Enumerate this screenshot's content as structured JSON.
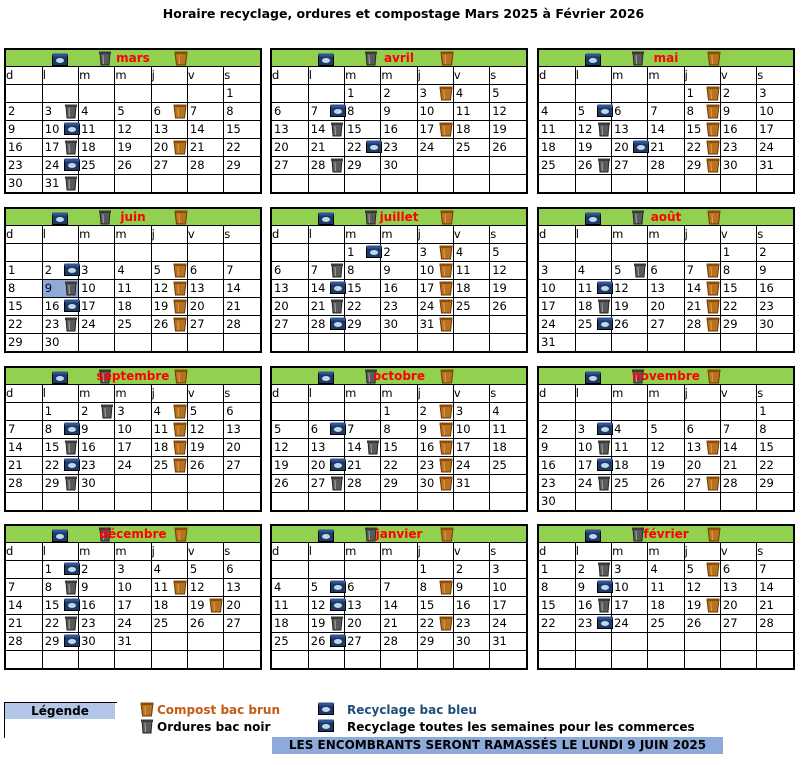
{
  "title": "Horaire recyclage, ordures et compostage Mars 2025 à Février 2026",
  "weekday_labels": [
    "d",
    "l",
    "m",
    "m",
    "j",
    "v",
    "s"
  ],
  "months": [
    {
      "name": "mars",
      "weeks": [
        [
          "",
          "",
          "",
          "",
          "",
          "",
          "1"
        ],
        [
          "2",
          "3",
          "4",
          "5",
          "6",
          "7",
          "8"
        ],
        [
          "9",
          "10",
          "11",
          "12",
          "13",
          "14",
          "15"
        ],
        [
          "16",
          "17",
          "18",
          "19",
          "20",
          "21",
          "22"
        ],
        [
          "23",
          "24",
          "25",
          "26",
          "27",
          "28",
          "29"
        ],
        [
          "30",
          "31",
          "",
          "",
          "",
          "",
          ""
        ]
      ],
      "icons": {
        "3": [
          "noir"
        ],
        "6": [
          "brun"
        ],
        "10": [
          "bleu"
        ],
        "17": [
          "noir"
        ],
        "20": [
          "brun"
        ],
        "24": [
          "bleu"
        ],
        "31": [
          "noir"
        ]
      }
    },
    {
      "name": "avril",
      "weeks": [
        [
          "",
          "",
          "1",
          "2",
          "3",
          "4",
          "5"
        ],
        [
          "6",
          "7",
          "8",
          "9",
          "10",
          "11",
          "12"
        ],
        [
          "13",
          "14",
          "15",
          "16",
          "17",
          "18",
          "19"
        ],
        [
          "20",
          "21",
          "22",
          "23",
          "24",
          "25",
          "26"
        ],
        [
          "27",
          "28",
          "29",
          "30",
          "",
          "",
          ""
        ],
        [
          "",
          "",
          "",
          "",
          "",
          "",
          ""
        ]
      ],
      "icons": {
        "3": [
          "brun"
        ],
        "7": [
          "bleu"
        ],
        "14": [
          "noir"
        ],
        "17": [
          "brun"
        ],
        "22": [
          "bleu"
        ],
        "28": [
          "noir"
        ]
      }
    },
    {
      "name": "mai",
      "weeks": [
        [
          "",
          "",
          "",
          "",
          "1",
          "2",
          "3"
        ],
        [
          "4",
          "5",
          "6",
          "7",
          "8",
          "9",
          "10"
        ],
        [
          "11",
          "12",
          "13",
          "14",
          "15",
          "16",
          "17"
        ],
        [
          "18",
          "19",
          "20",
          "21",
          "22",
          "23",
          "24"
        ],
        [
          "25",
          "26",
          "27",
          "28",
          "29",
          "30",
          "31"
        ],
        [
          "",
          "",
          "",
          "",
          "",
          "",
          ""
        ]
      ],
      "icons": {
        "1": [
          "brun"
        ],
        "5": [
          "bleu"
        ],
        "8": [
          "brun"
        ],
        "12": [
          "noir"
        ],
        "15": [
          "brun"
        ],
        "20": [
          "bleu"
        ],
        "22": [
          "brun"
        ],
        "26": [
          "noir"
        ],
        "29": [
          "brun"
        ]
      }
    },
    {
      "name": "juin",
      "weeks": [
        [
          "",
          "",
          "",
          "",
          "",
          "",
          ""
        ],
        [
          "1",
          "2",
          "3",
          "4",
          "5",
          "6",
          "7"
        ],
        [
          "8",
          "9",
          "10",
          "11",
          "12",
          "13",
          "14"
        ],
        [
          "15",
          "16",
          "17",
          "18",
          "19",
          "20",
          "21"
        ],
        [
          "22",
          "23",
          "24",
          "25",
          "26",
          "27",
          "28"
        ],
        [
          "29",
          "30",
          "",
          "",
          "",
          "",
          ""
        ]
      ],
      "icons": {
        "2": [
          "bleu"
        ],
        "5": [
          "brun"
        ],
        "9": [
          "noir"
        ],
        "12": [
          "brun"
        ],
        "16": [
          "bleu"
        ],
        "19": [
          "brun"
        ],
        "23": [
          "noir"
        ],
        "26": [
          "brun"
        ]
      },
      "highlight": [
        "9"
      ]
    },
    {
      "name": "juillet",
      "weeks": [
        [
          "",
          "",
          "1",
          "2",
          "3",
          "4",
          "5"
        ],
        [
          "6",
          "7",
          "8",
          "9",
          "10",
          "11",
          "12"
        ],
        [
          "13",
          "14",
          "15",
          "16",
          "17",
          "18",
          "19"
        ],
        [
          "20",
          "21",
          "22",
          "23",
          "24",
          "25",
          "26"
        ],
        [
          "27",
          "28",
          "29",
          "30",
          "31",
          "",
          ""
        ],
        [
          "",
          "",
          "",
          "",
          "",
          "",
          ""
        ]
      ],
      "icons": {
        "1": [
          "bleu"
        ],
        "3": [
          "brun"
        ],
        "7": [
          "noir"
        ],
        "10": [
          "brun"
        ],
        "14": [
          "bleu"
        ],
        "17": [
          "brun"
        ],
        "21": [
          "noir"
        ],
        "24": [
          "brun"
        ],
        "28": [
          "bleu"
        ],
        "31": [
          "brun"
        ]
      }
    },
    {
      "name": "août",
      "weeks": [
        [
          "",
          "",
          "",
          "",
          "",
          "1",
          "2"
        ],
        [
          "3",
          "4",
          "5",
          "6",
          "7",
          "8",
          "9"
        ],
        [
          "10",
          "11",
          "12",
          "13",
          "14",
          "15",
          "16"
        ],
        [
          "17",
          "18",
          "19",
          "20",
          "21",
          "22",
          "23"
        ],
        [
          "24",
          "25",
          "26",
          "27",
          "28",
          "29",
          "30"
        ],
        [
          "31",
          "",
          "",
          "",
          "",
          "",
          ""
        ]
      ],
      "icons": {
        "5": [
          "noir"
        ],
        "7": [
          "brun"
        ],
        "11": [
          "bleu"
        ],
        "14": [
          "brun"
        ],
        "18": [
          "noir"
        ],
        "21": [
          "brun"
        ],
        "25": [
          "bleu"
        ],
        "28": [
          "brun"
        ]
      }
    },
    {
      "name": "septembre",
      "weeks": [
        [
          "",
          "1",
          "2",
          "3",
          "4",
          "5",
          "6"
        ],
        [
          "7",
          "8",
          "9",
          "10",
          "11",
          "12",
          "13"
        ],
        [
          "14",
          "15",
          "16",
          "17",
          "18",
          "19",
          "20"
        ],
        [
          "21",
          "22",
          "23",
          "24",
          "25",
          "26",
          "27"
        ],
        [
          "28",
          "29",
          "30",
          "",
          "",
          "",
          ""
        ],
        [
          "",
          "",
          "",
          "",
          "",
          "",
          ""
        ]
      ],
      "icons": {
        "2": [
          "noir"
        ],
        "4": [
          "brun"
        ],
        "8": [
          "bleu"
        ],
        "11": [
          "brun"
        ],
        "15": [
          "noir"
        ],
        "18": [
          "brun"
        ],
        "22": [
          "bleu"
        ],
        "25": [
          "brun"
        ],
        "29": [
          "noir"
        ]
      }
    },
    {
      "name": "octobre",
      "weeks": [
        [
          "",
          "",
          "",
          "1",
          "2",
          "3",
          "4"
        ],
        [
          "5",
          "6",
          "7",
          "8",
          "9",
          "10",
          "11"
        ],
        [
          "12",
          "13",
          "14",
          "15",
          "16",
          "17",
          "18"
        ],
        [
          "19",
          "20",
          "21",
          "22",
          "23",
          "24",
          "25"
        ],
        [
          "26",
          "27",
          "28",
          "29",
          "30",
          "31",
          ""
        ],
        [
          "",
          "",
          "",
          "",
          "",
          "",
          ""
        ]
      ],
      "icons": {
        "2": [
          "brun"
        ],
        "6": [
          "bleu"
        ],
        "9": [
          "brun"
        ],
        "14": [
          "noir"
        ],
        "16": [
          "brun"
        ],
        "20": [
          "bleu"
        ],
        "23": [
          "brun"
        ],
        "27": [
          "noir"
        ],
        "30": [
          "brun"
        ]
      }
    },
    {
      "name": "novembre",
      "weeks": [
        [
          "",
          "",
          "",
          "",
          "",
          "",
          "1"
        ],
        [
          "2",
          "3",
          "4",
          "5",
          "6",
          "7",
          "8"
        ],
        [
          "9",
          "10",
          "11",
          "12",
          "13",
          "14",
          "15"
        ],
        [
          "16",
          "17",
          "18",
          "19",
          "20",
          "21",
          "22"
        ],
        [
          "23",
          "24",
          "25",
          "26",
          "27",
          "28",
          "29"
        ],
        [
          "30",
          "",
          "",
          "",
          "",
          "",
          ""
        ]
      ],
      "icons": {
        "3": [
          "bleu"
        ],
        "10": [
          "noir"
        ],
        "13": [
          "brun"
        ],
        "17": [
          "bleu"
        ],
        "24": [
          "noir"
        ],
        "27": [
          "brun"
        ]
      }
    },
    {
      "name": "décembre",
      "weeks": [
        [
          "",
          "1",
          "2",
          "3",
          "4",
          "5",
          "6"
        ],
        [
          "7",
          "8",
          "9",
          "10",
          "11",
          "12",
          "13"
        ],
        [
          "14",
          "15",
          "16",
          "17",
          "18",
          "19",
          "20"
        ],
        [
          "21",
          "22",
          "23",
          "24",
          "25",
          "26",
          "27"
        ],
        [
          "28",
          "29",
          "30",
          "31",
          "",
          "",
          ""
        ],
        [
          "",
          "",
          "",
          "",
          "",
          "",
          ""
        ]
      ],
      "icons": {
        "1": [
          "bleu"
        ],
        "8": [
          "noir"
        ],
        "11": [
          "brun"
        ],
        "15": [
          "bleu"
        ],
        "19": [
          "brun"
        ],
        "22": [
          "noir"
        ],
        "29": [
          "bleu"
        ]
      }
    },
    {
      "name": "janvier",
      "weeks": [
        [
          "",
          "",
          "",
          "",
          "1",
          "2",
          "3"
        ],
        [
          "4",
          "5",
          "6",
          "7",
          "8",
          "9",
          "10"
        ],
        [
          "11",
          "12",
          "13",
          "14",
          "15",
          "16",
          "17"
        ],
        [
          "18",
          "19",
          "20",
          "21",
          "22",
          "23",
          "24"
        ],
        [
          "25",
          "26",
          "27",
          "28",
          "29",
          "30",
          "31"
        ],
        [
          "",
          "",
          "",
          "",
          "",
          "",
          ""
        ]
      ],
      "icons": {
        "5": [
          "bleu"
        ],
        "8": [
          "brun"
        ],
        "12": [
          "bleu"
        ],
        "19": [
          "noir"
        ],
        "22": [
          "brun"
        ],
        "26": [
          "bleu"
        ]
      }
    },
    {
      "name": "février",
      "weeks": [
        [
          "1",
          "2",
          "3",
          "4",
          "5",
          "6",
          "7"
        ],
        [
          "8",
          "9",
          "10",
          "11",
          "12",
          "13",
          "14"
        ],
        [
          "15",
          "16",
          "17",
          "18",
          "19",
          "20",
          "21"
        ],
        [
          "22",
          "23",
          "24",
          "25",
          "26",
          "27",
          "28"
        ],
        [
          "",
          "",
          "",
          "",
          "",
          "",
          ""
        ],
        [
          "",
          "",
          "",
          "",
          "",
          "",
          ""
        ]
      ],
      "icons": {
        "2": [
          "noir"
        ],
        "5": [
          "brun"
        ],
        "9": [
          "bleu"
        ],
        "16": [
          "noir"
        ],
        "19": [
          "brun"
        ],
        "23": [
          "bleu"
        ]
      }
    }
  ],
  "legend": {
    "label": "Légende",
    "compost": "Compost bac brun",
    "ordures": "Ordures bac noir",
    "recyclage": "Recyclage bac bleu",
    "commerces": "Recyclage toutes les semaines pour les commerces",
    "encombrants": "LES ENCOMBRANTS SERONT RAMASSÉS LE LUNDI 9 JUIN 2025"
  },
  "colors": {
    "header_green": "#92d050",
    "month_red": "#ff0000",
    "legend_blue": "#b4c6e7",
    "banner_blue": "#8eaadb",
    "compost_text": "#c55a11",
    "recyclage_text": "#1f4e79"
  },
  "icon_names": {
    "brun": "compost-bin-icon",
    "noir": "garbage-bin-icon",
    "bleu": "recycling-bin-icon"
  }
}
